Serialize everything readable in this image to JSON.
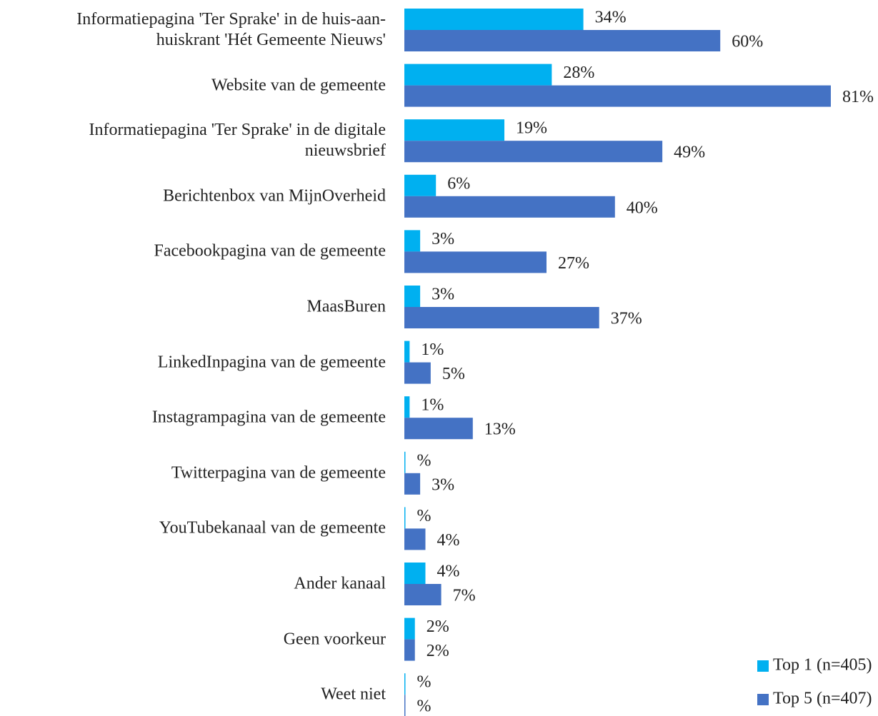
{
  "chart_data": {
    "type": "bar",
    "orientation": "horizontal",
    "categories": [
      "Informatiepagina 'Ter Sprake' in de huis-aan-\nhuiskrant 'Hét Gemeente Nieuws'",
      "Website van de gemeente",
      "Informatiepagina 'Ter Sprake' in de digitale\nnieuwsbrief",
      "Berichtenbox van MijnOverheid",
      "Facebookpagina van de gemeente",
      "MaasBuren",
      "LinkedInpagina van de gemeente",
      "Instagrampagina van de gemeente",
      "Twitterpagina van de gemeente",
      "YouTubekanaal van de gemeente",
      "Ander kanaal",
      "Geen voorkeur",
      "Weet niet"
    ],
    "series": [
      {
        "name": "Top 1 (n=405)",
        "color": "#00b0f0",
        "values": [
          34,
          28,
          19,
          6,
          3,
          3,
          1,
          1,
          0.2,
          0.2,
          4,
          2,
          0.2
        ],
        "value_labels": [
          "34%",
          "28%",
          "19%",
          "6%",
          "3%",
          "3%",
          "1%",
          "1%",
          "%",
          "%",
          "4%",
          "2%",
          "%"
        ]
      },
      {
        "name": "Top 5 (n=407)",
        "color": "#4472c4",
        "values": [
          60,
          81,
          49,
          40,
          27,
          37,
          5,
          13,
          3,
          4,
          7,
          2,
          0.2
        ],
        "value_labels": [
          "60%",
          "81%",
          "49%",
          "40%",
          "27%",
          "37%",
          "5%",
          "13%",
          "3%",
          "4%",
          "7%",
          "2%",
          "%"
        ]
      }
    ],
    "legend": "bottom-right"
  }
}
